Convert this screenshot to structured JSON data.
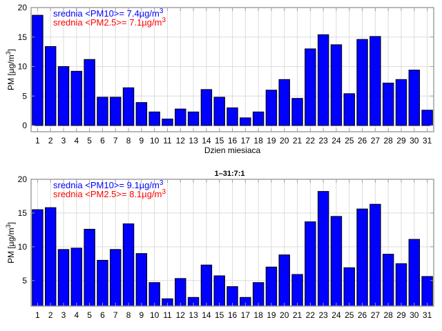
{
  "chart_data": [
    {
      "type": "bar",
      "title": "",
      "xlabel": "Dzien miesiaca",
      "ylabel": "PM [µg/m³]",
      "ylabel_main": "PM [",
      "ylabel_unit": "µg/m",
      "ylabel_sup": "3",
      "ylabel_end": "]",
      "ylim": [
        0,
        20
      ],
      "xlim": [
        0.5,
        31.5
      ],
      "yticks": [
        0,
        5,
        10,
        15,
        20
      ],
      "categories": [
        "1",
        "2",
        "3",
        "4",
        "5",
        "6",
        "7",
        "8",
        "9",
        "10",
        "11",
        "12",
        "13",
        "14",
        "15",
        "16",
        "17",
        "18",
        "19",
        "20",
        "21",
        "22",
        "23",
        "24",
        "25",
        "26",
        "27",
        "28",
        "29",
        "30",
        "31"
      ],
      "values": [
        18.7,
        13.4,
        10.0,
        9.2,
        11.2,
        4.8,
        4.8,
        6.4,
        3.9,
        2.3,
        1.1,
        2.8,
        2.3,
        6.1,
        4.8,
        3.0,
        1.3,
        2.3,
        6.0,
        7.8,
        4.6,
        13.0,
        15.4,
        13.7,
        5.4,
        14.6,
        15.1,
        7.2,
        7.8,
        9.4,
        2.6
      ],
      "bar_color": "#0000ff",
      "grid": true,
      "annotations": [
        {
          "text": "srednia <PM10>= 7.4µg/m",
          "sup": "3",
          "color": "#0000ff"
        },
        {
          "text": "srednia <PM2.5>= 7.1µg/m",
          "sup": "3",
          "color": "#ff0000"
        }
      ]
    },
    {
      "type": "bar",
      "title": "1–31:7:1",
      "xlabel": "",
      "ylabel": "PM [µg/m³]",
      "ylabel_main": "PM [",
      "ylabel_unit": "µg/m",
      "ylabel_sup": "3",
      "ylabel_end": "]",
      "ylim": [
        1.2,
        20
      ],
      "xlim": [
        0.5,
        31.5
      ],
      "yticks": [
        5,
        10,
        15,
        20
      ],
      "categories": [
        "1",
        "2",
        "3",
        "4",
        "5",
        "6",
        "7",
        "8",
        "9",
        "10",
        "11",
        "12",
        "13",
        "14",
        "15",
        "16",
        "17",
        "18",
        "19",
        "20",
        "21",
        "22",
        "23",
        "24",
        "25",
        "26",
        "27",
        "28",
        "29",
        "30",
        "31"
      ],
      "values": [
        15.5,
        15.8,
        9.6,
        9.8,
        12.6,
        8.0,
        9.6,
        13.4,
        9.0,
        4.7,
        2.3,
        5.3,
        2.5,
        7.3,
        5.7,
        4.1,
        2.5,
        4.7,
        7.0,
        8.8,
        5.9,
        13.7,
        18.2,
        14.5,
        6.9,
        15.6,
        16.3,
        8.9,
        7.5,
        11.1,
        5.6
      ],
      "bar_color": "#0000ff",
      "grid": true,
      "annotations": [
        {
          "text": "srednia <PM10>= 9.1µg/m",
          "sup": "3",
          "color": "#0000ff"
        },
        {
          "text": "srednia <PM2.5>= 8.1µg/m",
          "sup": "3",
          "color": "#ff0000"
        }
      ]
    }
  ]
}
